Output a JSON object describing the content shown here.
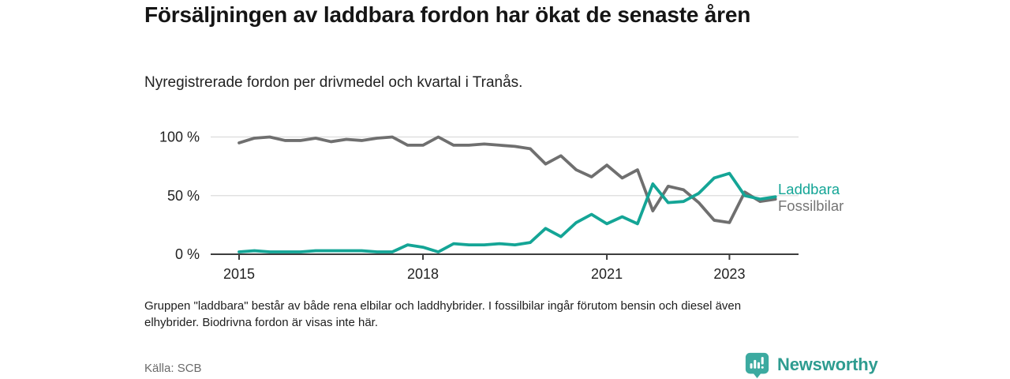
{
  "header": {
    "title": "Försäljningen av laddbara fordon har ökat de senaste åren",
    "subtitle": "Nyregistrerade fordon per drivmedel och kvartal i Tranås."
  },
  "chart_data": {
    "type": "line",
    "x": [
      "2015K1",
      "2015K2",
      "2015K3",
      "2015K4",
      "2016K1",
      "2016K2",
      "2016K3",
      "2016K4",
      "2017K1",
      "2017K2",
      "2017K3",
      "2017K4",
      "2018K1",
      "2018K2",
      "2018K3",
      "2018K4",
      "2019K1",
      "2019K2",
      "2019K3",
      "2019K4",
      "2020K1",
      "2020K2",
      "2020K3",
      "2020K4",
      "2021K1",
      "2021K2",
      "2021K3",
      "2021K4",
      "2022K1",
      "2022K2",
      "2022K3",
      "2022K4",
      "2023K1",
      "2023K2",
      "2023K3",
      "2023K4"
    ],
    "series": [
      {
        "name": "Laddbara",
        "color": "#14a596",
        "values": [
          2,
          3,
          2,
          2,
          2,
          3,
          3,
          3,
          3,
          2,
          2,
          8,
          6,
          2,
          9,
          8,
          8,
          9,
          8,
          10,
          22,
          15,
          27,
          34,
          26,
          32,
          26,
          60,
          44,
          45,
          52,
          65,
          69,
          50,
          47,
          49
        ]
      },
      {
        "name": "Fossilbilar",
        "color": "#6f6f6f",
        "values": [
          95,
          99,
          100,
          97,
          97,
          99,
          96,
          98,
          97,
          99,
          100,
          93,
          93,
          100,
          93,
          93,
          94,
          93,
          92,
          90,
          77,
          84,
          72,
          66,
          76,
          65,
          72,
          37,
          58,
          55,
          44,
          29,
          27,
          53,
          45,
          47
        ]
      }
    ],
    "ylim": [
      0,
      100
    ],
    "y_ticks": [
      0,
      50,
      100
    ],
    "y_tick_labels": [
      "0 %",
      "50 %",
      "100 %"
    ],
    "x_tick_quarters": [
      0,
      12,
      24,
      32
    ],
    "x_tick_labels": [
      "2015",
      "2018",
      "2021",
      "2023"
    ],
    "grid": "horizontal",
    "legend_position": "right"
  },
  "footnote": {
    "line1": "Gruppen \"laddbara\" består av både rena elbilar och laddhybrider. I fossilbilar ingår förutom bensin och diesel även",
    "line2": "elhybrider. Biodrivna fordon är visas inte här."
  },
  "source": "Källa: SCB",
  "branding": {
    "logo_text": "Newsworthy",
    "logo_icon": "bar-chart-speech-bubble-icon"
  },
  "colors": {
    "accent_teal": "#14a596",
    "line_gray": "#6f6f6f",
    "grid_line": "#dcdcdc",
    "axis_line": "#3d3d3d",
    "legend_gray": "#757575",
    "logo_icon_teal": "#3caaa0",
    "logo_text_teal": "#2e9c90"
  }
}
